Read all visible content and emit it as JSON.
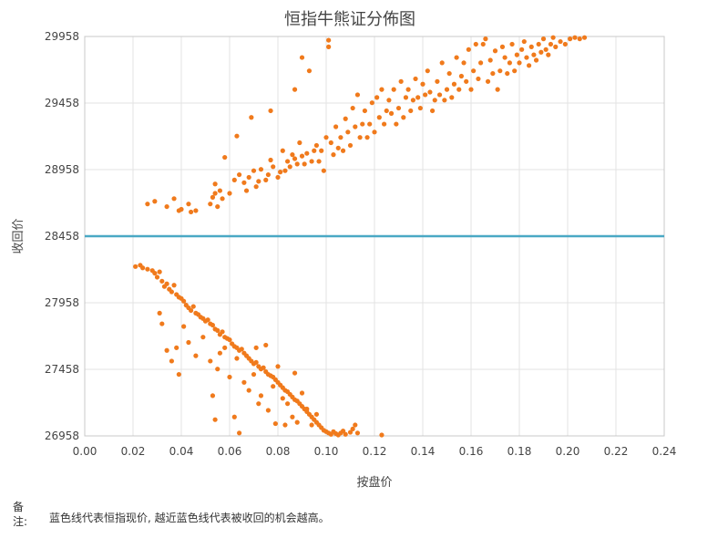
{
  "chart_data": {
    "type": "scatter",
    "title": "恒指牛熊证分佈图",
    "xlabel": "按盘价",
    "ylabel": "收回价",
    "xlim": [
      0,
      0.24
    ],
    "ylim": [
      26958,
      29958
    ],
    "xticks": [
      "0.00",
      "0.02",
      "0.04",
      "0.06",
      "0.08",
      "0.10",
      "0.12",
      "0.14",
      "0.16",
      "0.18",
      "0.20",
      "0.22",
      "0.24"
    ],
    "yticks": [
      "26958",
      "27458",
      "27958",
      "28458",
      "28958",
      "29458",
      "29958"
    ],
    "grid": true,
    "reference_line": {
      "value": 28458,
      "color": "#4aa8c4"
    },
    "point_color": "#f07a1c",
    "series": [
      {
        "upper_points": [
          [
            0.026,
            28700
          ],
          [
            0.029,
            28720
          ],
          [
            0.034,
            28680
          ],
          [
            0.037,
            28740
          ],
          [
            0.039,
            28650
          ],
          [
            0.04,
            28660
          ],
          [
            0.043,
            28700
          ],
          [
            0.044,
            28640
          ],
          [
            0.046,
            28650
          ],
          [
            0.052,
            28700
          ],
          [
            0.053,
            28750
          ],
          [
            0.054,
            28780
          ],
          [
            0.054,
            28850
          ],
          [
            0.055,
            28680
          ],
          [
            0.056,
            28800
          ],
          [
            0.057,
            28740
          ],
          [
            0.058,
            29050
          ],
          [
            0.06,
            28780
          ],
          [
            0.062,
            28880
          ],
          [
            0.063,
            29210
          ],
          [
            0.064,
            28920
          ],
          [
            0.066,
            28860
          ],
          [
            0.067,
            28800
          ],
          [
            0.068,
            28900
          ],
          [
            0.069,
            29350
          ],
          [
            0.07,
            28950
          ],
          [
            0.071,
            28830
          ],
          [
            0.072,
            28870
          ],
          [
            0.073,
            28960
          ],
          [
            0.075,
            28880
          ],
          [
            0.076,
            28920
          ],
          [
            0.077,
            29400
          ],
          [
            0.077,
            29030
          ],
          [
            0.078,
            28980
          ],
          [
            0.08,
            28900
          ],
          [
            0.081,
            28940
          ],
          [
            0.082,
            29100
          ],
          [
            0.083,
            28950
          ],
          [
            0.084,
            29020
          ],
          [
            0.085,
            28980
          ],
          [
            0.086,
            29070
          ],
          [
            0.087,
            29040
          ],
          [
            0.087,
            29560
          ],
          [
            0.088,
            29000
          ],
          [
            0.089,
            29160
          ],
          [
            0.09,
            29060
          ],
          [
            0.09,
            29800
          ],
          [
            0.091,
            29000
          ],
          [
            0.092,
            29080
          ],
          [
            0.093,
            29700
          ],
          [
            0.094,
            29020
          ],
          [
            0.095,
            29100
          ],
          [
            0.096,
            29140
          ],
          [
            0.097,
            29020
          ],
          [
            0.098,
            29100
          ],
          [
            0.099,
            28950
          ],
          [
            0.1,
            29200
          ],
          [
            0.101,
            29880
          ],
          [
            0.101,
            29930
          ],
          [
            0.102,
            29160
          ],
          [
            0.103,
            29070
          ],
          [
            0.104,
            29280
          ],
          [
            0.105,
            29120
          ],
          [
            0.106,
            29200
          ],
          [
            0.107,
            29100
          ],
          [
            0.108,
            29340
          ],
          [
            0.109,
            29240
          ],
          [
            0.11,
            29140
          ],
          [
            0.111,
            29420
          ],
          [
            0.112,
            29280
          ],
          [
            0.113,
            29520
          ],
          [
            0.114,
            29200
          ],
          [
            0.115,
            29300
          ],
          [
            0.116,
            29400
          ],
          [
            0.117,
            29200
          ],
          [
            0.118,
            29300
          ],
          [
            0.119,
            29460
          ],
          [
            0.12,
            29240
          ],
          [
            0.121,
            29500
          ],
          [
            0.122,
            29350
          ],
          [
            0.123,
            29560
          ],
          [
            0.124,
            29300
          ],
          [
            0.125,
            29400
          ],
          [
            0.126,
            29480
          ],
          [
            0.127,
            29380
          ],
          [
            0.128,
            29560
          ],
          [
            0.129,
            29300
          ],
          [
            0.13,
            29420
          ],
          [
            0.131,
            29620
          ],
          [
            0.132,
            29350
          ],
          [
            0.133,
            29500
          ],
          [
            0.134,
            29560
          ],
          [
            0.135,
            29400
          ],
          [
            0.136,
            29480
          ],
          [
            0.137,
            29640
          ],
          [
            0.138,
            29500
          ],
          [
            0.139,
            29420
          ],
          [
            0.14,
            29600
          ],
          [
            0.141,
            29520
          ],
          [
            0.142,
            29700
          ],
          [
            0.143,
            29540
          ],
          [
            0.144,
            29400
          ],
          [
            0.145,
            29480
          ],
          [
            0.146,
            29620
          ],
          [
            0.147,
            29520
          ],
          [
            0.148,
            29760
          ],
          [
            0.149,
            29480
          ],
          [
            0.15,
            29560
          ],
          [
            0.151,
            29680
          ],
          [
            0.152,
            29500
          ],
          [
            0.153,
            29600
          ],
          [
            0.154,
            29800
          ],
          [
            0.155,
            29560
          ],
          [
            0.156,
            29660
          ],
          [
            0.157,
            29760
          ],
          [
            0.158,
            29620
          ],
          [
            0.159,
            29860
          ],
          [
            0.16,
            29560
          ],
          [
            0.161,
            29700
          ],
          [
            0.162,
            29900
          ],
          [
            0.163,
            29640
          ],
          [
            0.164,
            29760
          ],
          [
            0.165,
            29900
          ],
          [
            0.166,
            29940
          ],
          [
            0.167,
            29620
          ],
          [
            0.168,
            29780
          ],
          [
            0.169,
            29680
          ],
          [
            0.17,
            29850
          ],
          [
            0.171,
            29560
          ],
          [
            0.172,
            29700
          ],
          [
            0.173,
            29880
          ],
          [
            0.174,
            29800
          ],
          [
            0.175,
            29680
          ],
          [
            0.176,
            29760
          ],
          [
            0.177,
            29900
          ],
          [
            0.178,
            29700
          ],
          [
            0.179,
            29820
          ],
          [
            0.18,
            29760
          ],
          [
            0.181,
            29860
          ],
          [
            0.182,
            29920
          ],
          [
            0.183,
            29800
          ],
          [
            0.184,
            29740
          ],
          [
            0.185,
            29880
          ],
          [
            0.186,
            29820
          ],
          [
            0.187,
            29780
          ],
          [
            0.188,
            29900
          ],
          [
            0.189,
            29840
          ],
          [
            0.19,
            29940
          ],
          [
            0.191,
            29860
          ],
          [
            0.192,
            29820
          ],
          [
            0.193,
            29900
          ],
          [
            0.194,
            29950
          ],
          [
            0.195,
            29880
          ],
          [
            0.197,
            29920
          ],
          [
            0.199,
            29900
          ],
          [
            0.201,
            29940
          ],
          [
            0.203,
            29950
          ],
          [
            0.205,
            29940
          ],
          [
            0.207,
            29950
          ]
        ],
        "lower_points": [
          [
            0.021,
            28230
          ],
          [
            0.023,
            28240
          ],
          [
            0.024,
            28220
          ],
          [
            0.026,
            28210
          ],
          [
            0.028,
            28200
          ],
          [
            0.029,
            28180
          ],
          [
            0.03,
            28150
          ],
          [
            0.031,
            28190
          ],
          [
            0.032,
            28120
          ],
          [
            0.033,
            28080
          ],
          [
            0.034,
            28100
          ],
          [
            0.035,
            28060
          ],
          [
            0.036,
            28040
          ],
          [
            0.037,
            28090
          ],
          [
            0.038,
            28020
          ],
          [
            0.039,
            28000
          ],
          [
            0.04,
            27990
          ],
          [
            0.041,
            27970
          ],
          [
            0.042,
            27940
          ],
          [
            0.043,
            27920
          ],
          [
            0.044,
            27900
          ],
          [
            0.045,
            27930
          ],
          [
            0.046,
            27880
          ],
          [
            0.047,
            27870
          ],
          [
            0.048,
            27850
          ],
          [
            0.049,
            27840
          ],
          [
            0.05,
            27820
          ],
          [
            0.051,
            27830
          ],
          [
            0.052,
            27800
          ],
          [
            0.053,
            27790
          ],
          [
            0.054,
            27760
          ],
          [
            0.055,
            27750
          ],
          [
            0.056,
            27720
          ],
          [
            0.057,
            27740
          ],
          [
            0.058,
            27700
          ],
          [
            0.059,
            27690
          ],
          [
            0.06,
            27680
          ],
          [
            0.061,
            27650
          ],
          [
            0.062,
            27630
          ],
          [
            0.063,
            27620
          ],
          [
            0.064,
            27600
          ],
          [
            0.065,
            27610
          ],
          [
            0.066,
            27580
          ],
          [
            0.067,
            27560
          ],
          [
            0.068,
            27540
          ],
          [
            0.069,
            27520
          ],
          [
            0.07,
            27500
          ],
          [
            0.071,
            27510
          ],
          [
            0.072,
            27480
          ],
          [
            0.073,
            27460
          ],
          [
            0.074,
            27470
          ],
          [
            0.075,
            27440
          ],
          [
            0.076,
            27420
          ],
          [
            0.077,
            27410
          ],
          [
            0.078,
            27400
          ],
          [
            0.079,
            27380
          ],
          [
            0.08,
            27360
          ],
          [
            0.081,
            27340
          ],
          [
            0.082,
            27320
          ],
          [
            0.083,
            27300
          ],
          [
            0.084,
            27290
          ],
          [
            0.085,
            27270
          ],
          [
            0.086,
            27250
          ],
          [
            0.087,
            27230
          ],
          [
            0.088,
            27220
          ],
          [
            0.089,
            27200
          ],
          [
            0.09,
            27180
          ],
          [
            0.091,
            27160
          ],
          [
            0.092,
            27140
          ],
          [
            0.093,
            27120
          ],
          [
            0.094,
            27100
          ],
          [
            0.095,
            27080
          ],
          [
            0.096,
            27060
          ],
          [
            0.097,
            27040
          ],
          [
            0.098,
            27020
          ],
          [
            0.099,
            27000
          ],
          [
            0.1,
            26990
          ],
          [
            0.101,
            26980
          ],
          [
            0.102,
            26970
          ],
          [
            0.103,
            26990
          ],
          [
            0.104,
            26975
          ],
          [
            0.105,
            26965
          ],
          [
            0.106,
            26980
          ],
          [
            0.107,
            26995
          ],
          [
            0.108,
            26970
          ],
          [
            0.11,
            26985
          ],
          [
            0.111,
            27010
          ],
          [
            0.112,
            27040
          ],
          [
            0.113,
            26980
          ],
          [
            0.123,
            26965
          ],
          [
            0.031,
            27880
          ],
          [
            0.032,
            27800
          ],
          [
            0.034,
            27600
          ],
          [
            0.036,
            27520
          ],
          [
            0.038,
            27620
          ],
          [
            0.039,
            27420
          ],
          [
            0.041,
            27780
          ],
          [
            0.043,
            27660
          ],
          [
            0.046,
            27560
          ],
          [
            0.049,
            27700
          ],
          [
            0.052,
            27520
          ],
          [
            0.053,
            27260
          ],
          [
            0.054,
            27080
          ],
          [
            0.055,
            27460
          ],
          [
            0.056,
            27580
          ],
          [
            0.058,
            27620
          ],
          [
            0.06,
            27400
          ],
          [
            0.062,
            27100
          ],
          [
            0.063,
            27540
          ],
          [
            0.064,
            26980
          ],
          [
            0.066,
            27360
          ],
          [
            0.068,
            27300
          ],
          [
            0.07,
            27420
          ],
          [
            0.071,
            27620
          ],
          [
            0.072,
            27200
          ],
          [
            0.073,
            27260
          ],
          [
            0.075,
            27640
          ],
          [
            0.076,
            27150
          ],
          [
            0.078,
            27330
          ],
          [
            0.079,
            27050
          ],
          [
            0.08,
            27480
          ],
          [
            0.082,
            27240
          ],
          [
            0.083,
            27040
          ],
          [
            0.084,
            27200
          ],
          [
            0.086,
            27100
          ],
          [
            0.087,
            27430
          ],
          [
            0.088,
            27060
          ],
          [
            0.09,
            27280
          ],
          [
            0.092,
            27160
          ],
          [
            0.094,
            27040
          ],
          [
            0.096,
            27120
          ]
        ]
      }
    ]
  },
  "note": {
    "label": "备注:",
    "text": "蓝色线代表恒指现价, 越近蓝色线代表被收回的机会越高。"
  }
}
